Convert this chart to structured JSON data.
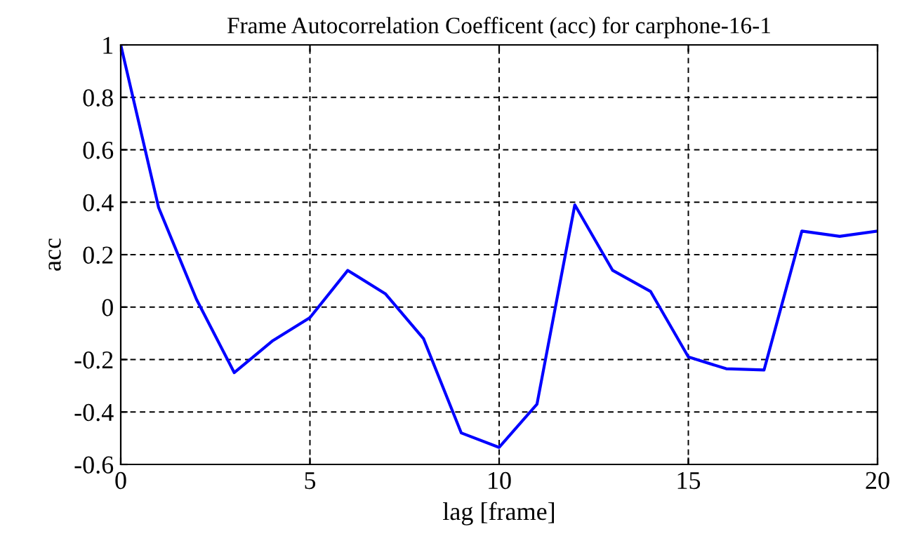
{
  "chart_data": {
    "type": "line",
    "title": "Frame Autocorrelation Coefficent (acc) for carphone-16-1",
    "xlabel": "lag [frame]",
    "ylabel": "acc",
    "x": [
      0,
      1,
      2,
      3,
      4,
      5,
      6,
      7,
      8,
      9,
      10,
      11,
      12,
      13,
      14,
      15,
      16,
      17,
      18,
      19,
      20
    ],
    "series": [
      {
        "color": "#0000ff",
        "values": [
          1.0,
          0.38,
          0.03,
          -0.25,
          -0.13,
          -0.04,
          0.14,
          0.05,
          -0.12,
          -0.48,
          -0.535,
          -0.37,
          0.39,
          0.14,
          0.06,
          -0.19,
          -0.235,
          -0.24,
          0.29,
          0.27,
          0.29
        ]
      }
    ],
    "xlim": [
      0,
      20
    ],
    "xticks": [
      0,
      5,
      10,
      15,
      20
    ],
    "ylim": [
      -0.6,
      1
    ],
    "yticks": [
      -0.6,
      -0.4,
      -0.2,
      0,
      0.2,
      0.4,
      0.6,
      0.8,
      1
    ],
    "grid": true,
    "line_style": "solid",
    "marker": "none"
  }
}
